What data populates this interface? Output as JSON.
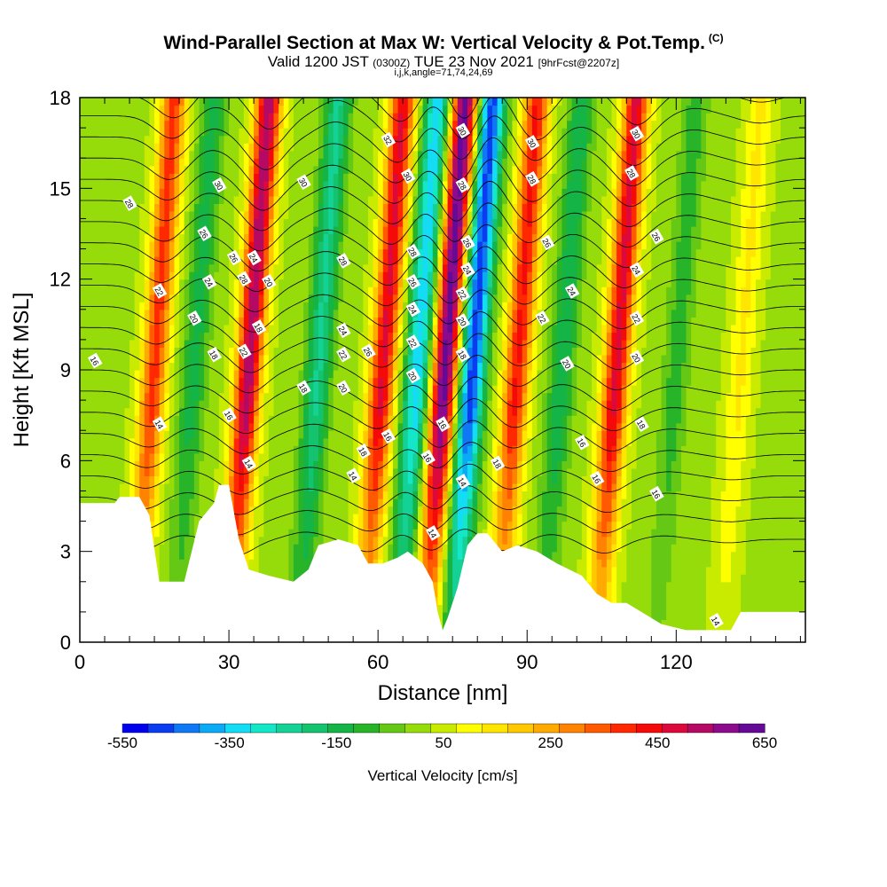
{
  "title": "Wind-Parallel Section at Max W: Vertical Velocity & Pot.Temp.",
  "title_mark": "(C)",
  "subtitle_a": "Valid 1200 JST",
  "subtitle_b": "(0300Z)",
  "subtitle_c": "TUE 23 Nov 2021",
  "subtitle_d": "[9hrFcst@2207z]",
  "subtitle2": "i,j,k,angle=71,74,24,69",
  "chart_data": {
    "type": "heatmap",
    "xlabel": "Distance [nm]",
    "ylabel": "Height [Kft MSL]",
    "xlim": [
      0,
      146
    ],
    "ylim": [
      0,
      18
    ],
    "xticks": [
      0,
      30,
      60,
      90,
      120
    ],
    "yticks": [
      0,
      3,
      6,
      9,
      12,
      15,
      18
    ],
    "grid": false,
    "colorbar": {
      "label": "Vertical Velocity [cm/s]",
      "ticks": [
        -550,
        -350,
        -150,
        50,
        250,
        450,
        650
      ],
      "levels": [
        -550,
        -500,
        -450,
        -400,
        -350,
        -300,
        -250,
        -200,
        -150,
        -100,
        -50,
        0,
        50,
        100,
        150,
        200,
        250,
        300,
        350,
        400,
        450,
        500,
        550,
        600,
        650
      ],
      "colors": [
        "#0000ee",
        "#0a3cf0",
        "#0f78f5",
        "#0aaaf5",
        "#14dcf5",
        "#14e6c8",
        "#14d296",
        "#14c36e",
        "#14b446",
        "#28b428",
        "#64c814",
        "#96dc0a",
        "#c8eb00",
        "#ffff00",
        "#ffe600",
        "#ffc800",
        "#ffaa00",
        "#ff8200",
        "#ff5a00",
        "#ff2800",
        "#f50a0a",
        "#dc0a3c",
        "#b40a64",
        "#8c0a8c",
        "#640a96"
      ]
    },
    "vertical_velocity_bands": [
      {
        "x": 15,
        "w": 380
      },
      {
        "x": 23,
        "w": -160
      },
      {
        "x": 34,
        "w": 550
      },
      {
        "x": 48,
        "w": -250
      },
      {
        "x": 61,
        "w": 470
      },
      {
        "x": 68,
        "w": -380
      },
      {
        "x": 73.5,
        "w": 640
      },
      {
        "x": 79,
        "w": -520
      },
      {
        "x": 88,
        "w": 420
      },
      {
        "x": 97,
        "w": -180
      },
      {
        "x": 108,
        "w": 480
      },
      {
        "x": 120,
        "w": -120
      },
      {
        "x": 133,
        "w": 120
      }
    ],
    "terrain_kft": [
      [
        0,
        4.6
      ],
      [
        7,
        4.6
      ],
      [
        8,
        4.8
      ],
      [
        12,
        4.8
      ],
      [
        14,
        4.2
      ],
      [
        16,
        2.0
      ],
      [
        21,
        2.0
      ],
      [
        24,
        4.0
      ],
      [
        27,
        4.6
      ],
      [
        28,
        5.2
      ],
      [
        30,
        5.2
      ],
      [
        32,
        3.4
      ],
      [
        34,
        2.4
      ],
      [
        38,
        2.2
      ],
      [
        43,
        2.0
      ],
      [
        46,
        2.4
      ],
      [
        48,
        3.2
      ],
      [
        52,
        3.4
      ],
      [
        56,
        3.2
      ],
      [
        58,
        2.6
      ],
      [
        61,
        2.6
      ],
      [
        64,
        2.8
      ],
      [
        66,
        3.0
      ],
      [
        69,
        2.6
      ],
      [
        71,
        2.0
      ],
      [
        72,
        1.0
      ],
      [
        73,
        0.4
      ],
      [
        74,
        0.8
      ],
      [
        76,
        1.8
      ],
      [
        78,
        3.2
      ],
      [
        80,
        3.6
      ],
      [
        82,
        3.6
      ],
      [
        85,
        3.0
      ],
      [
        88,
        3.2
      ],
      [
        92,
        3.0
      ],
      [
        96,
        2.6
      ],
      [
        101,
        2.2
      ],
      [
        104,
        1.6
      ],
      [
        107,
        1.3
      ],
      [
        110,
        1.3
      ],
      [
        114,
        0.9
      ],
      [
        117,
        0.6
      ],
      [
        122,
        0.4
      ],
      [
        131,
        0.4
      ],
      [
        133,
        1.0
      ],
      [
        146,
        1.0
      ]
    ],
    "theta_contour_labels": [
      {
        "x": 3,
        "y": 9.3,
        "t": "16"
      },
      {
        "x": 10,
        "y": 14.5,
        "t": "28"
      },
      {
        "x": 16,
        "y": 11.6,
        "t": "22"
      },
      {
        "x": 16,
        "y": 7.2,
        "t": "14"
      },
      {
        "x": 23,
        "y": 10.7,
        "t": "20"
      },
      {
        "x": 25,
        "y": 13.5,
        "t": "26"
      },
      {
        "x": 26,
        "y": 11.9,
        "t": "24"
      },
      {
        "x": 27,
        "y": 9.5,
        "t": "18"
      },
      {
        "x": 28,
        "y": 15.1,
        "t": "30"
      },
      {
        "x": 30,
        "y": 7.5,
        "t": "16"
      },
      {
        "x": 31,
        "y": 12.7,
        "t": "26"
      },
      {
        "x": 33,
        "y": 12.0,
        "t": "28"
      },
      {
        "x": 33,
        "y": 9.6,
        "t": "22"
      },
      {
        "x": 34,
        "y": 5.9,
        "t": "14"
      },
      {
        "x": 35,
        "y": 12.7,
        "t": "24"
      },
      {
        "x": 36,
        "y": 10.4,
        "t": "18"
      },
      {
        "x": 38,
        "y": 11.9,
        "t": "20"
      },
      {
        "x": 45,
        "y": 15.2,
        "t": "30"
      },
      {
        "x": 45,
        "y": 8.4,
        "t": "18"
      },
      {
        "x": 53,
        "y": 12.6,
        "t": "28"
      },
      {
        "x": 53,
        "y": 10.3,
        "t": "24"
      },
      {
        "x": 53,
        "y": 9.5,
        "t": "22"
      },
      {
        "x": 53,
        "y": 8.4,
        "t": "20"
      },
      {
        "x": 55,
        "y": 5.5,
        "t": "14"
      },
      {
        "x": 57,
        "y": 6.3,
        "t": "18"
      },
      {
        "x": 58,
        "y": 9.6,
        "t": "26"
      },
      {
        "x": 62,
        "y": 16.6,
        "t": "32"
      },
      {
        "x": 62,
        "y": 6.8,
        "t": "16"
      },
      {
        "x": 66,
        "y": 15.4,
        "t": "30"
      },
      {
        "x": 67,
        "y": 12.9,
        "t": "28"
      },
      {
        "x": 67,
        "y": 11.9,
        "t": "26"
      },
      {
        "x": 67,
        "y": 11.0,
        "t": "24"
      },
      {
        "x": 67,
        "y": 9.9,
        "t": "22"
      },
      {
        "x": 67,
        "y": 8.8,
        "t": "20"
      },
      {
        "x": 70,
        "y": 6.1,
        "t": "16"
      },
      {
        "x": 71,
        "y": 3.6,
        "t": "14"
      },
      {
        "x": 73,
        "y": 7.2,
        "t": "16"
      },
      {
        "x": 77,
        "y": 16.9,
        "t": "30"
      },
      {
        "x": 77,
        "y": 15.1,
        "t": "28"
      },
      {
        "x": 78,
        "y": 13.2,
        "t": "26"
      },
      {
        "x": 78,
        "y": 12.3,
        "t": "24"
      },
      {
        "x": 77,
        "y": 11.5,
        "t": "22"
      },
      {
        "x": 77,
        "y": 10.6,
        "t": "20"
      },
      {
        "x": 77,
        "y": 9.5,
        "t": "18"
      },
      {
        "x": 77,
        "y": 5.3,
        "t": "14"
      },
      {
        "x": 84,
        "y": 5.9,
        "t": "18"
      },
      {
        "x": 91,
        "y": 16.5,
        "t": "30"
      },
      {
        "x": 91,
        "y": 15.3,
        "t": "28"
      },
      {
        "x": 94,
        "y": 13.2,
        "t": "26"
      },
      {
        "x": 93,
        "y": 10.7,
        "t": "22"
      },
      {
        "x": 99,
        "y": 11.6,
        "t": "24"
      },
      {
        "x": 98,
        "y": 9.2,
        "t": "20"
      },
      {
        "x": 101,
        "y": 6.6,
        "t": "16"
      },
      {
        "x": 104,
        "y": 5.4,
        "t": "16"
      },
      {
        "x": 112,
        "y": 16.8,
        "t": "30"
      },
      {
        "x": 111,
        "y": 15.5,
        "t": "28"
      },
      {
        "x": 112,
        "y": 12.3,
        "t": "24"
      },
      {
        "x": 112,
        "y": 10.7,
        "t": "22"
      },
      {
        "x": 112,
        "y": 9.4,
        "t": "20"
      },
      {
        "x": 113,
        "y": 7.2,
        "t": "18"
      },
      {
        "x": 116,
        "y": 4.9,
        "t": "16"
      },
      {
        "x": 116,
        "y": 13.4,
        "t": "26"
      },
      {
        "x": 128,
        "y": 0.7,
        "t": "14"
      }
    ]
  }
}
